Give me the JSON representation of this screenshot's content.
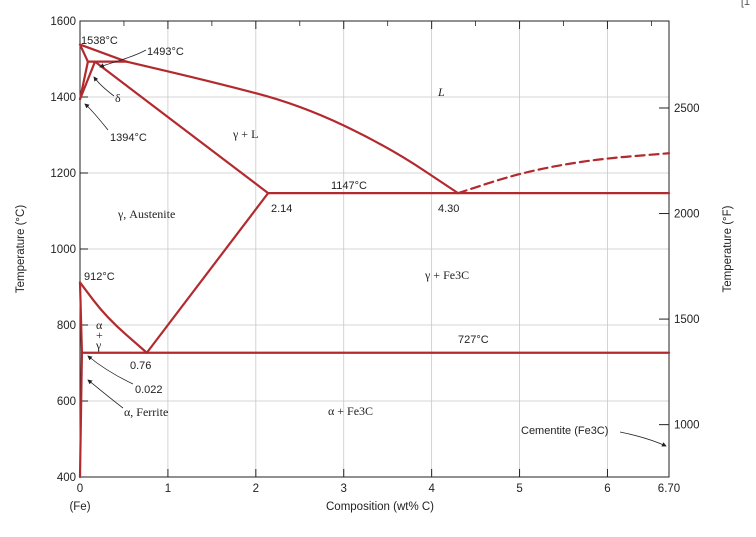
{
  "corner_mark": "[1",
  "chart_data": {
    "type": "line",
    "title": "",
    "xlabel": "Composition (wt% C)",
    "ylabel_left": "Temperature (°C)",
    "ylabel_right": "Temperature (°F)",
    "xlim": [
      0,
      6.7
    ],
    "ylim": [
      400,
      1600
    ],
    "x_ticks": [
      0,
      1,
      2,
      3,
      4,
      5,
      6,
      6.7
    ],
    "x_tick_labels": [
      "0",
      "1",
      "2",
      "3",
      "4",
      "5",
      "6",
      "6.70"
    ],
    "x_sub_label": "(Fe)",
    "y_ticks": [
      400,
      600,
      800,
      1000,
      1200,
      1400,
      1600
    ],
    "y_tick_labels": [
      "400",
      "600",
      "800",
      "1000",
      "1200",
      "1400",
      "1600"
    ],
    "y_right_ticks_F": [
      1000,
      1500,
      2000,
      2500
    ],
    "y_right_tick_labels": [
      "1000",
      "1500",
      "2000",
      "2500"
    ],
    "grid": true,
    "line_color": "#b22a2e",
    "series": [
      {
        "points": [
          [
            0,
            1538
          ],
          [
            0.53,
            1493
          ]
        ]
      },
      {
        "points": [
          [
            0,
            1538
          ],
          [
            0.09,
            1493
          ]
        ]
      },
      {
        "points": [
          [
            0.09,
            1493
          ],
          [
            0.53,
            1493
          ]
        ]
      },
      {
        "points": [
          [
            0.09,
            1493
          ],
          [
            0,
            1394
          ]
        ]
      },
      {
        "points": [
          [
            0.17,
            1493
          ],
          [
            0,
            1394
          ]
        ]
      },
      {
        "points": [
          [
            0.17,
            1493
          ],
          [
            2.14,
            1147
          ]
        ]
      },
      {
        "points": [
          [
            0.53,
            1493
          ],
          [
            1.5,
            1440
          ],
          [
            2.5,
            1380
          ],
          [
            3.5,
            1270
          ],
          [
            4.3,
            1147
          ]
        ]
      },
      {
        "points": [
          [
            4.3,
            1147
          ],
          [
            5.0,
            1200
          ],
          [
            5.8,
            1235
          ],
          [
            6.7,
            1252
          ]
        ],
        "dashed": true
      },
      {
        "points": [
          [
            2.14,
            1147
          ],
          [
            6.7,
            1147
          ]
        ]
      },
      {
        "points": [
          [
            2.14,
            1147
          ],
          [
            0.76,
            727
          ]
        ]
      },
      {
        "points": [
          [
            0,
            912
          ],
          [
            0.3,
            820
          ],
          [
            0.76,
            727
          ]
        ]
      },
      {
        "points": [
          [
            0,
            912
          ],
          [
            0.022,
            727
          ]
        ]
      },
      {
        "points": [
          [
            0.022,
            727
          ],
          [
            6.7,
            727
          ]
        ]
      },
      {
        "points": [
          [
            0.022,
            727
          ],
          [
            0,
            400
          ]
        ]
      }
    ],
    "annotations": {
      "t1538": "1538°C",
      "t1493": "1493°C",
      "delta": "δ",
      "t1394": "1394°C",
      "liquid": "L",
      "gamma_l": "γ + L",
      "t1147": "1147°C",
      "c214": "2.14",
      "c430": "4.30",
      "austenite": "γ, Austenite",
      "t912": "912°C",
      "gamma_fe3c": "γ + Fe3C",
      "alpha": "α",
      "plus": "+",
      "gamma": "γ",
      "t727": "727°C",
      "c076": "0.76",
      "c0022": "0.022",
      "ferrite": "α, Ferrite",
      "alpha_fe3c": "α + Fe3C",
      "cementite": "Cementite (Fe3C)"
    }
  }
}
